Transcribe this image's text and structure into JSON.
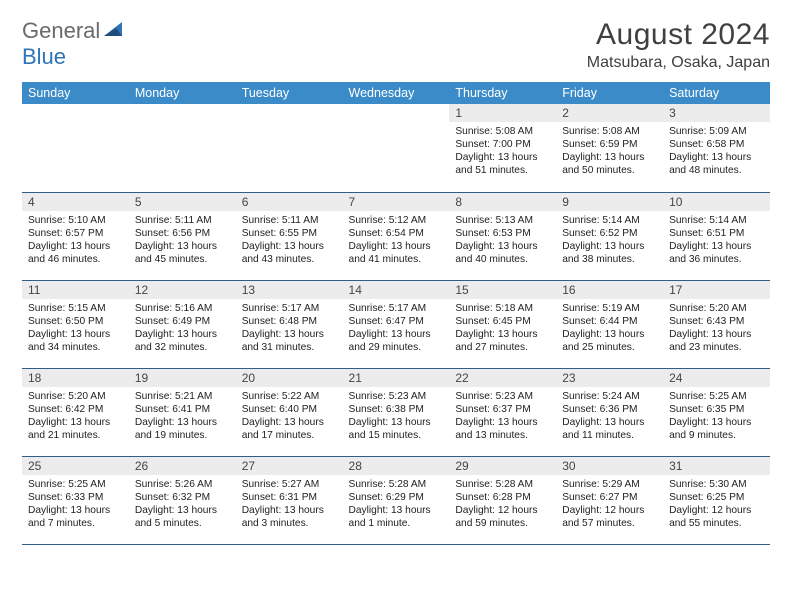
{
  "brand": {
    "part1": "General",
    "part2": "Blue"
  },
  "title": "August 2024",
  "location": "Matsubara, Osaka, Japan",
  "colors": {
    "header_bg": "#3b8bc9",
    "header_fg": "#ffffff",
    "daynum_bg": "#ececec",
    "row_border": "#2e5f8a",
    "brand_gray": "#6a6a6a",
    "brand_blue": "#2e75b6"
  },
  "day_headers": [
    "Sunday",
    "Monday",
    "Tuesday",
    "Wednesday",
    "Thursday",
    "Friday",
    "Saturday"
  ],
  "weeks": [
    [
      {
        "n": "",
        "sr": "",
        "ss": "",
        "dl": ""
      },
      {
        "n": "",
        "sr": "",
        "ss": "",
        "dl": ""
      },
      {
        "n": "",
        "sr": "",
        "ss": "",
        "dl": ""
      },
      {
        "n": "",
        "sr": "",
        "ss": "",
        "dl": ""
      },
      {
        "n": "1",
        "sr": "Sunrise: 5:08 AM",
        "ss": "Sunset: 7:00 PM",
        "dl": "Daylight: 13 hours and 51 minutes."
      },
      {
        "n": "2",
        "sr": "Sunrise: 5:08 AM",
        "ss": "Sunset: 6:59 PM",
        "dl": "Daylight: 13 hours and 50 minutes."
      },
      {
        "n": "3",
        "sr": "Sunrise: 5:09 AM",
        "ss": "Sunset: 6:58 PM",
        "dl": "Daylight: 13 hours and 48 minutes."
      }
    ],
    [
      {
        "n": "4",
        "sr": "Sunrise: 5:10 AM",
        "ss": "Sunset: 6:57 PM",
        "dl": "Daylight: 13 hours and 46 minutes."
      },
      {
        "n": "5",
        "sr": "Sunrise: 5:11 AM",
        "ss": "Sunset: 6:56 PM",
        "dl": "Daylight: 13 hours and 45 minutes."
      },
      {
        "n": "6",
        "sr": "Sunrise: 5:11 AM",
        "ss": "Sunset: 6:55 PM",
        "dl": "Daylight: 13 hours and 43 minutes."
      },
      {
        "n": "7",
        "sr": "Sunrise: 5:12 AM",
        "ss": "Sunset: 6:54 PM",
        "dl": "Daylight: 13 hours and 41 minutes."
      },
      {
        "n": "8",
        "sr": "Sunrise: 5:13 AM",
        "ss": "Sunset: 6:53 PM",
        "dl": "Daylight: 13 hours and 40 minutes."
      },
      {
        "n": "9",
        "sr": "Sunrise: 5:14 AM",
        "ss": "Sunset: 6:52 PM",
        "dl": "Daylight: 13 hours and 38 minutes."
      },
      {
        "n": "10",
        "sr": "Sunrise: 5:14 AM",
        "ss": "Sunset: 6:51 PM",
        "dl": "Daylight: 13 hours and 36 minutes."
      }
    ],
    [
      {
        "n": "11",
        "sr": "Sunrise: 5:15 AM",
        "ss": "Sunset: 6:50 PM",
        "dl": "Daylight: 13 hours and 34 minutes."
      },
      {
        "n": "12",
        "sr": "Sunrise: 5:16 AM",
        "ss": "Sunset: 6:49 PM",
        "dl": "Daylight: 13 hours and 32 minutes."
      },
      {
        "n": "13",
        "sr": "Sunrise: 5:17 AM",
        "ss": "Sunset: 6:48 PM",
        "dl": "Daylight: 13 hours and 31 minutes."
      },
      {
        "n": "14",
        "sr": "Sunrise: 5:17 AM",
        "ss": "Sunset: 6:47 PM",
        "dl": "Daylight: 13 hours and 29 minutes."
      },
      {
        "n": "15",
        "sr": "Sunrise: 5:18 AM",
        "ss": "Sunset: 6:45 PM",
        "dl": "Daylight: 13 hours and 27 minutes."
      },
      {
        "n": "16",
        "sr": "Sunrise: 5:19 AM",
        "ss": "Sunset: 6:44 PM",
        "dl": "Daylight: 13 hours and 25 minutes."
      },
      {
        "n": "17",
        "sr": "Sunrise: 5:20 AM",
        "ss": "Sunset: 6:43 PM",
        "dl": "Daylight: 13 hours and 23 minutes."
      }
    ],
    [
      {
        "n": "18",
        "sr": "Sunrise: 5:20 AM",
        "ss": "Sunset: 6:42 PM",
        "dl": "Daylight: 13 hours and 21 minutes."
      },
      {
        "n": "19",
        "sr": "Sunrise: 5:21 AM",
        "ss": "Sunset: 6:41 PM",
        "dl": "Daylight: 13 hours and 19 minutes."
      },
      {
        "n": "20",
        "sr": "Sunrise: 5:22 AM",
        "ss": "Sunset: 6:40 PM",
        "dl": "Daylight: 13 hours and 17 minutes."
      },
      {
        "n": "21",
        "sr": "Sunrise: 5:23 AM",
        "ss": "Sunset: 6:38 PM",
        "dl": "Daylight: 13 hours and 15 minutes."
      },
      {
        "n": "22",
        "sr": "Sunrise: 5:23 AM",
        "ss": "Sunset: 6:37 PM",
        "dl": "Daylight: 13 hours and 13 minutes."
      },
      {
        "n": "23",
        "sr": "Sunrise: 5:24 AM",
        "ss": "Sunset: 6:36 PM",
        "dl": "Daylight: 13 hours and 11 minutes."
      },
      {
        "n": "24",
        "sr": "Sunrise: 5:25 AM",
        "ss": "Sunset: 6:35 PM",
        "dl": "Daylight: 13 hours and 9 minutes."
      }
    ],
    [
      {
        "n": "25",
        "sr": "Sunrise: 5:25 AM",
        "ss": "Sunset: 6:33 PM",
        "dl": "Daylight: 13 hours and 7 minutes."
      },
      {
        "n": "26",
        "sr": "Sunrise: 5:26 AM",
        "ss": "Sunset: 6:32 PM",
        "dl": "Daylight: 13 hours and 5 minutes."
      },
      {
        "n": "27",
        "sr": "Sunrise: 5:27 AM",
        "ss": "Sunset: 6:31 PM",
        "dl": "Daylight: 13 hours and 3 minutes."
      },
      {
        "n": "28",
        "sr": "Sunrise: 5:28 AM",
        "ss": "Sunset: 6:29 PM",
        "dl": "Daylight: 13 hours and 1 minute."
      },
      {
        "n": "29",
        "sr": "Sunrise: 5:28 AM",
        "ss": "Sunset: 6:28 PM",
        "dl": "Daylight: 12 hours and 59 minutes."
      },
      {
        "n": "30",
        "sr": "Sunrise: 5:29 AM",
        "ss": "Sunset: 6:27 PM",
        "dl": "Daylight: 12 hours and 57 minutes."
      },
      {
        "n": "31",
        "sr": "Sunrise: 5:30 AM",
        "ss": "Sunset: 6:25 PM",
        "dl": "Daylight: 12 hours and 55 minutes."
      }
    ]
  ]
}
